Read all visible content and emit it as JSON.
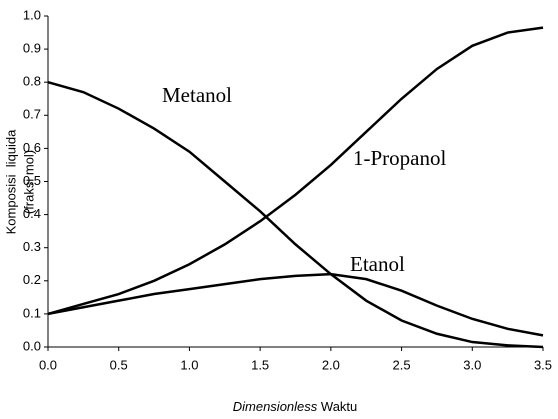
{
  "chart_data": {
    "type": "line",
    "x_label": [
      "Dimensionless",
      "Waktu"
    ],
    "y_label": [
      "Komposisi  liquida",
      "(fraksi mol)"
    ],
    "x": [
      0,
      0.25,
      0.5,
      0.75,
      1.0,
      1.25,
      1.5,
      1.75,
      2.0,
      2.25,
      2.5,
      2.75,
      3.0,
      3.25,
      3.5
    ],
    "series": [
      {
        "name": "Metanol",
        "color": "#000000",
        "values": [
          0.8,
          0.77,
          0.72,
          0.66,
          0.59,
          0.5,
          0.41,
          0.31,
          0.22,
          0.14,
          0.08,
          0.04,
          0.015,
          0.005,
          0.0
        ]
      },
      {
        "name": "1-Propanol",
        "color": "#000000",
        "values": [
          0.1,
          0.13,
          0.16,
          0.2,
          0.25,
          0.31,
          0.38,
          0.46,
          0.55,
          0.65,
          0.75,
          0.84,
          0.91,
          0.95,
          0.965
        ]
      },
      {
        "name": "Etanol",
        "color": "#000000",
        "values": [
          0.1,
          0.12,
          0.14,
          0.16,
          0.175,
          0.19,
          0.205,
          0.215,
          0.22,
          0.205,
          0.17,
          0.125,
          0.085,
          0.055,
          0.035
        ]
      }
    ],
    "xlim": [
      0,
      3.5
    ],
    "xticks": [
      {
        "value": 0,
        "label": "0.0"
      },
      0.5,
      {
        "value": 1,
        "label": "1.0"
      },
      1.5,
      {
        "value": 2,
        "label": "2.0"
      },
      2.5,
      {
        "value": 3,
        "label": "3.0"
      },
      3.5
    ],
    "ylim": [
      0,
      1
    ],
    "yticks": [
      {
        "value": 0,
        "label": "0.0"
      },
      0.1,
      0.2,
      0.3,
      0.4,
      0.5,
      0.6,
      0.7,
      0.8,
      0.9,
      {
        "value": 1,
        "label": "1.0"
      }
    ],
    "grid": false
  }
}
